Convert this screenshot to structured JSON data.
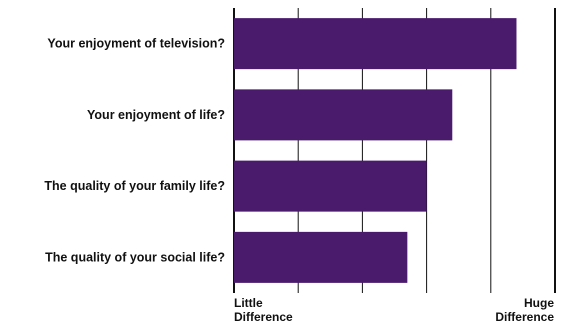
{
  "chart_data": {
    "type": "bar",
    "orientation": "horizontal",
    "categories": [
      "Your enjoyment of television?",
      "Your enjoyment of life?",
      "The quality of your family life?",
      "The quality of your social life?"
    ],
    "values": [
      4.4,
      3.4,
      3.0,
      2.7
    ],
    "xlim": [
      0,
      5
    ],
    "grid": true,
    "scale_labels": {
      "low": [
        "Little",
        "Difference"
      ],
      "high": [
        "Huge",
        "Difference"
      ]
    },
    "bar_color": "#4a1a6c"
  }
}
